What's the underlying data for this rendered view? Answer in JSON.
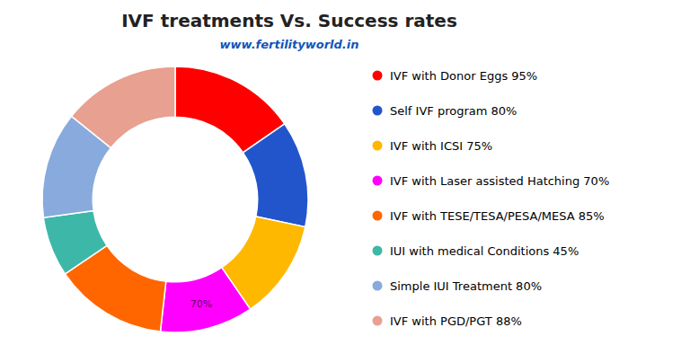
{
  "chart_data": {
    "type": "donut",
    "title": "IVF treatments Vs. Success rates",
    "subtitle": "www.fertilityworld.in",
    "categories": [
      "IVF with Donor Eggs  95%",
      "Self IVF program 80%",
      "IVF with ICSI 75%",
      "IVF with Laser assisted Hatching 70%",
      "IVF with TESE/TESA/PESA/MESA 85%",
      "IUI with medical Conditions 45%",
      "Simple IUI Treatment 80%",
      "IVF with PGD/PGT 88%"
    ],
    "values": [
      95,
      80,
      75,
      70,
      85,
      45,
      80,
      88
    ],
    "value_labels": [
      null,
      null,
      null,
      "70%",
      null,
      null,
      null,
      null
    ],
    "colors": [
      "#FF0000",
      "#2255CC",
      "#FFB800",
      "#FF00FF",
      "#FF6600",
      "#3DB8A8",
      "#88AADD",
      "#E8A090"
    ],
    "legend": "right"
  }
}
